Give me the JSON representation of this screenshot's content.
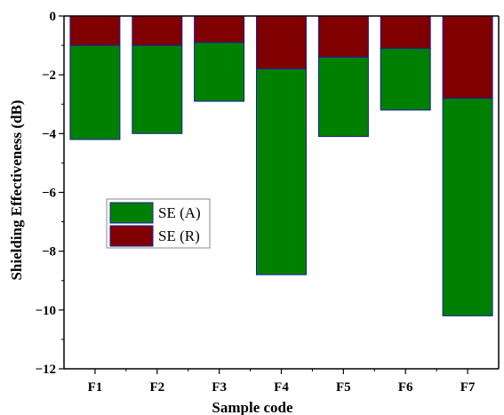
{
  "chart_data": {
    "type": "bar",
    "stacked": true,
    "categories": [
      "F1",
      "F2",
      "F3",
      "F4",
      "F5",
      "F6",
      "F7"
    ],
    "series": [
      {
        "name": "SE (R)",
        "values": [
          -1.0,
          -1.0,
          -0.9,
          -1.8,
          -1.4,
          -1.1,
          -2.8
        ],
        "color": "#800000"
      },
      {
        "name": "SE (A)",
        "values": [
          -3.2,
          -3.0,
          -2.0,
          -7.0,
          -2.7,
          -2.1,
          -7.4
        ],
        "color": "#008000"
      }
    ],
    "title": "",
    "xlabel": "Sample code",
    "ylabel": "Shielding Effectiveness (dB)",
    "ylim": [
      -12,
      0
    ],
    "yticks": [
      "0",
      "−2",
      "−4",
      "−6",
      "−8",
      "−10",
      "−12"
    ],
    "grid": false,
    "legend": {
      "entries": [
        {
          "label": "SE (A)",
          "color": "#008000"
        },
        {
          "label": "SE (R)",
          "color": "#800000"
        }
      ],
      "placement": "center-left"
    },
    "bar_edge_color": "#1a1aa6"
  }
}
